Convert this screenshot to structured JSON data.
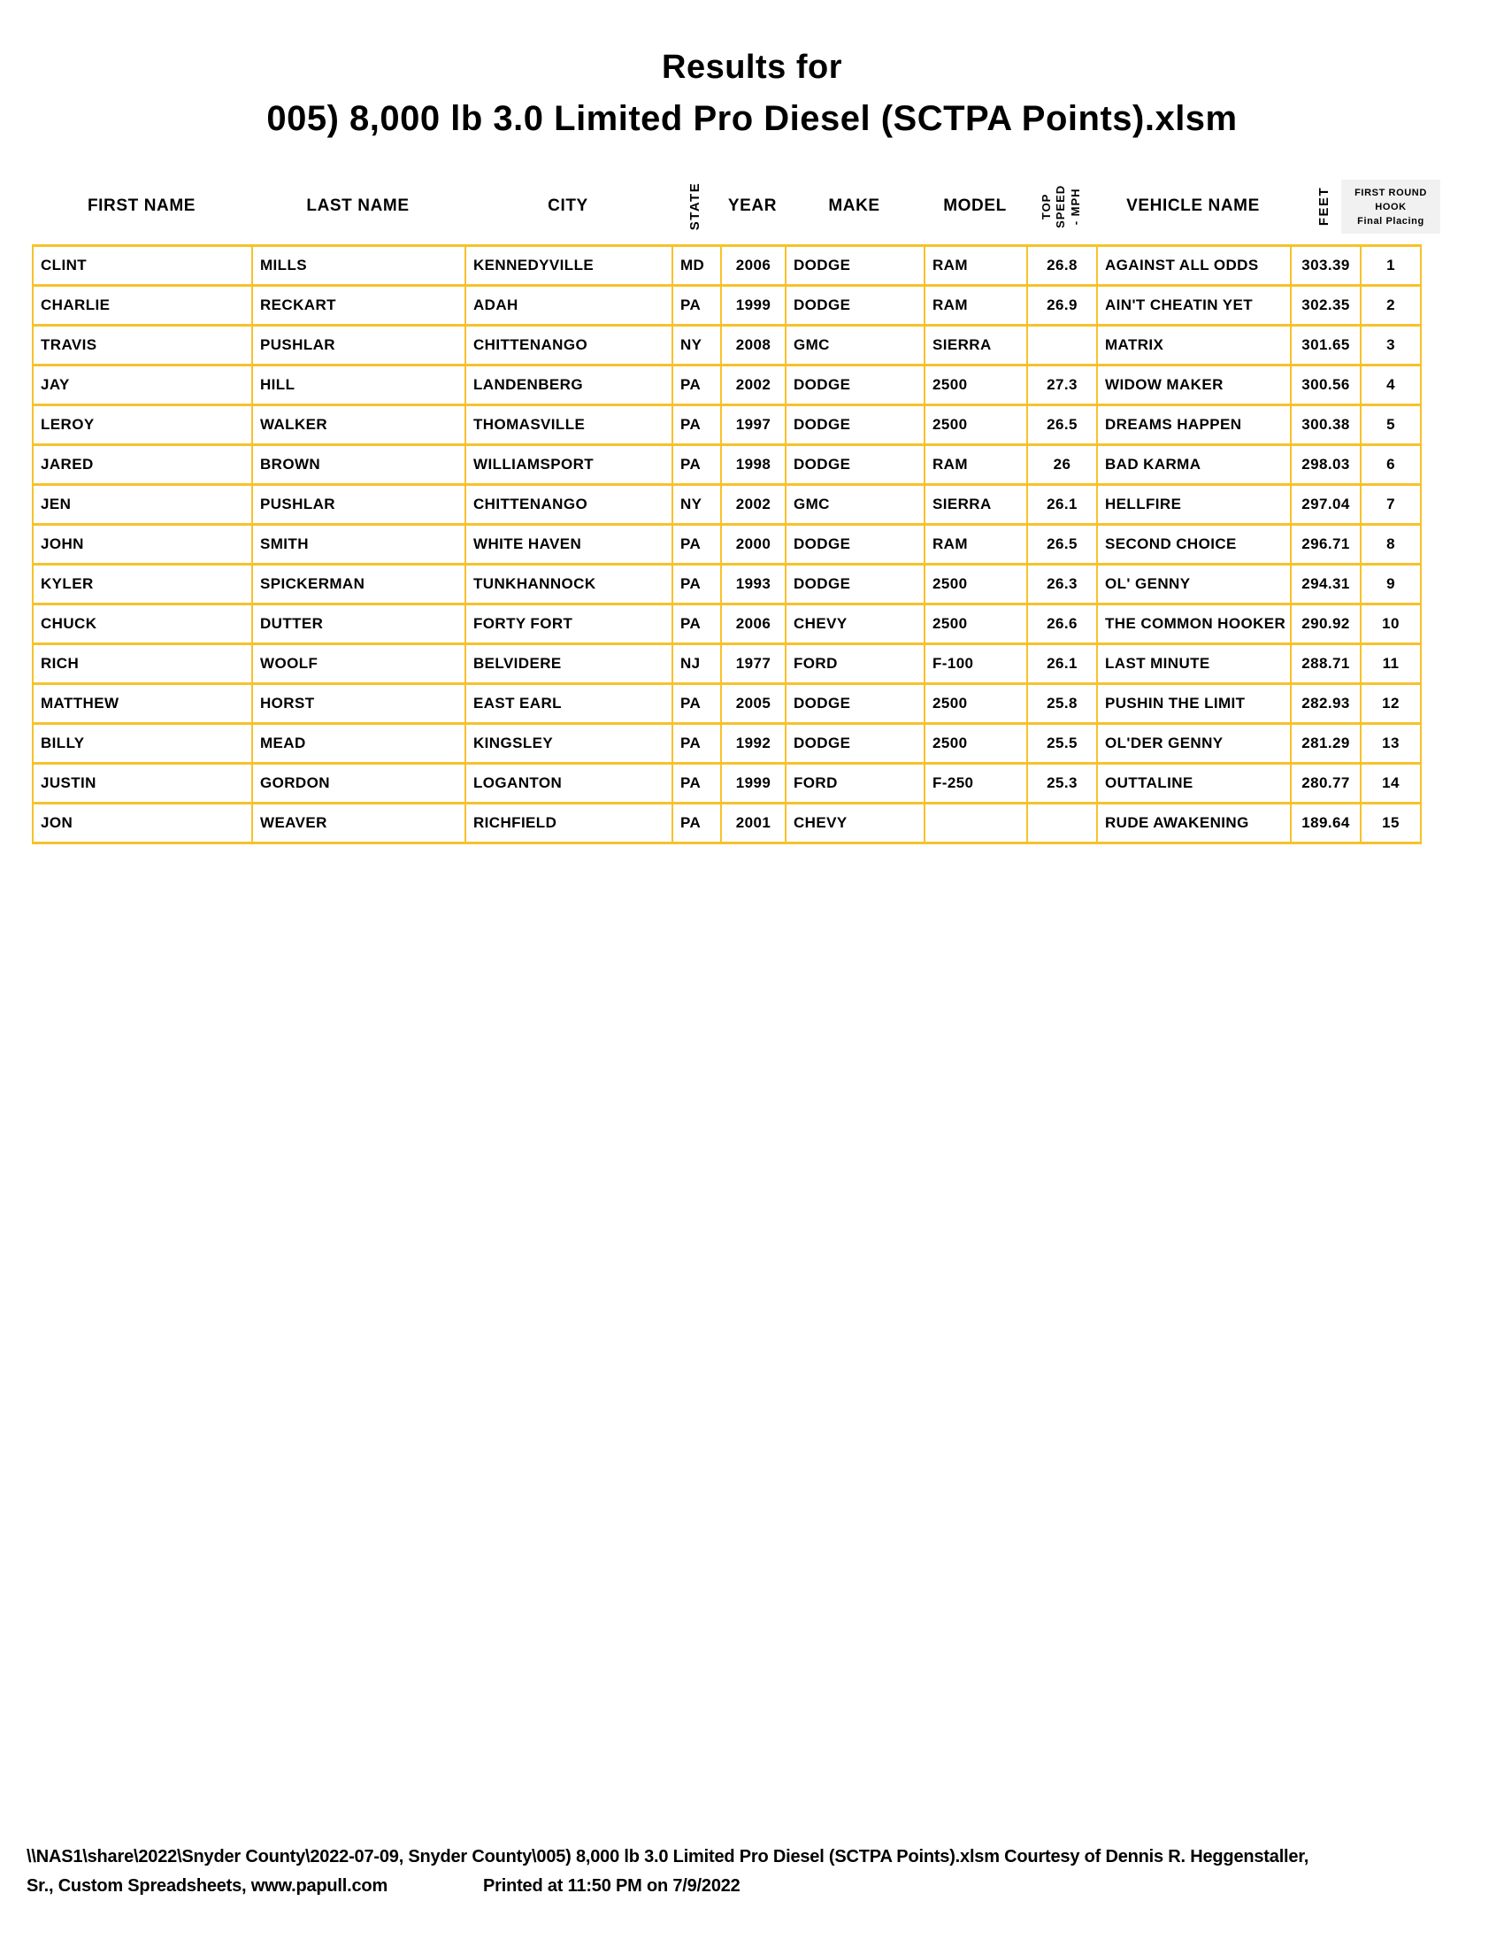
{
  "title": {
    "line1": "Results for",
    "line2": "005) 8,000 lb 3.0 Limited Pro Diesel (SCTPA Points).xlsm"
  },
  "colors": {
    "table_border": "#F6C22C",
    "placing_header_bg": "#F1F1F1"
  },
  "table": {
    "columns": [
      {
        "key": "first_name",
        "label": "FIRST NAME"
      },
      {
        "key": "last_name",
        "label": "LAST NAME"
      },
      {
        "key": "city",
        "label": "CITY"
      },
      {
        "key": "state",
        "label": "STATE"
      },
      {
        "key": "year",
        "label": "YEAR"
      },
      {
        "key": "make",
        "label": "MAKE"
      },
      {
        "key": "model",
        "label": "MODEL"
      },
      {
        "key": "top_speed",
        "label": "TOP\nSPEED\n- MPH"
      },
      {
        "key": "vehicle_name",
        "label": "VEHICLE NAME"
      },
      {
        "key": "feet",
        "label": "FEET"
      },
      {
        "key": "placing",
        "label_line1": "FIRST ROUND",
        "label_line2": "HOOK",
        "label_line3": "Final Placing"
      }
    ],
    "rows": [
      {
        "first_name": "CLINT",
        "last_name": "MILLS",
        "city": "KENNEDYVILLE",
        "state": "MD",
        "year": "2006",
        "make": "DODGE",
        "model": "RAM",
        "top_speed": "26.8",
        "vehicle_name": "AGAINST ALL ODDS",
        "feet": "303.39",
        "placing": "1"
      },
      {
        "first_name": "CHARLIE",
        "last_name": "RECKART",
        "city": "ADAH",
        "state": "PA",
        "year": "1999",
        "make": "DODGE",
        "model": "RAM",
        "top_speed": "26.9",
        "vehicle_name": "AIN'T CHEATIN YET",
        "feet": "302.35",
        "placing": "2"
      },
      {
        "first_name": "TRAVIS",
        "last_name": "PUSHLAR",
        "city": "CHITTENANGO",
        "state": "NY",
        "year": "2008",
        "make": "GMC",
        "model": "SIERRA",
        "top_speed": "",
        "vehicle_name": "MATRIX",
        "feet": "301.65",
        "placing": "3"
      },
      {
        "first_name": "JAY",
        "last_name": "HILL",
        "city": "LANDENBERG",
        "state": "PA",
        "year": "2002",
        "make": "DODGE",
        "model": "2500",
        "top_speed": "27.3",
        "vehicle_name": "WIDOW MAKER",
        "feet": "300.56",
        "placing": "4"
      },
      {
        "first_name": "LEROY",
        "last_name": "WALKER",
        "city": "THOMASVILLE",
        "state": "PA",
        "year": "1997",
        "make": "DODGE",
        "model": "2500",
        "top_speed": "26.5",
        "vehicle_name": "DREAMS HAPPEN",
        "feet": "300.38",
        "placing": "5"
      },
      {
        "first_name": "JARED",
        "last_name": "BROWN",
        "city": "WILLIAMSPORT",
        "state": "PA",
        "year": "1998",
        "make": "DODGE",
        "model": "RAM",
        "top_speed": "26",
        "vehicle_name": "BAD KARMA",
        "feet": "298.03",
        "placing": "6"
      },
      {
        "first_name": "JEN",
        "last_name": "PUSHLAR",
        "city": "CHITTENANGO",
        "state": "NY",
        "year": "2002",
        "make": "GMC",
        "model": "SIERRA",
        "top_speed": "26.1",
        "vehicle_name": "HELLFIRE",
        "feet": "297.04",
        "placing": "7"
      },
      {
        "first_name": "JOHN",
        "last_name": "SMITH",
        "city": "WHITE HAVEN",
        "state": "PA",
        "year": "2000",
        "make": "DODGE",
        "model": "RAM",
        "top_speed": "26.5",
        "vehicle_name": "SECOND CHOICE",
        "feet": "296.71",
        "placing": "8"
      },
      {
        "first_name": "KYLER",
        "last_name": "SPICKERMAN",
        "city": "TUNKHANNOCK",
        "state": "PA",
        "year": "1993",
        "make": "DODGE",
        "model": "2500",
        "top_speed": "26.3",
        "vehicle_name": "OL' GENNY",
        "feet": "294.31",
        "placing": "9"
      },
      {
        "first_name": "CHUCK",
        "last_name": "DUTTER",
        "city": "FORTY FORT",
        "state": "PA",
        "year": "2006",
        "make": "CHEVY",
        "model": "2500",
        "top_speed": "26.6",
        "vehicle_name": "THE COMMON HOOKER",
        "feet": "290.92",
        "placing": "10"
      },
      {
        "first_name": "RICH",
        "last_name": "WOOLF",
        "city": "BELVIDERE",
        "state": "NJ",
        "year": "1977",
        "make": "FORD",
        "model": "F-100",
        "top_speed": "26.1",
        "vehicle_name": "LAST MINUTE",
        "feet": "288.71",
        "placing": "11"
      },
      {
        "first_name": "MATTHEW",
        "last_name": "HORST",
        "city": "EAST EARL",
        "state": "PA",
        "year": "2005",
        "make": "DODGE",
        "model": "2500",
        "top_speed": "25.8",
        "vehicle_name": "PUSHIN THE LIMIT",
        "feet": "282.93",
        "placing": "12"
      },
      {
        "first_name": "BILLY",
        "last_name": "MEAD",
        "city": "KINGSLEY",
        "state": "PA",
        "year": "1992",
        "make": "DODGE",
        "model": "2500",
        "top_speed": "25.5",
        "vehicle_name": "OL'DER GENNY",
        "feet": "281.29",
        "placing": "13"
      },
      {
        "first_name": "JUSTIN",
        "last_name": "GORDON",
        "city": "LOGANTON",
        "state": "PA",
        "year": "1999",
        "make": "FORD",
        "model": "F-250",
        "top_speed": "25.3",
        "vehicle_name": "OUTTALINE",
        "feet": "280.77",
        "placing": "14"
      },
      {
        "first_name": "JON",
        "last_name": "WEAVER",
        "city": "RICHFIELD",
        "state": "PA",
        "year": "2001",
        "make": "CHEVY",
        "model": "",
        "top_speed": "",
        "vehicle_name": "RUDE AWAKENING",
        "feet": "189.64",
        "placing": "15"
      }
    ]
  },
  "footer": {
    "line1": "\\\\NAS1\\share\\2022\\Snyder County\\2022-07-09, Snyder County\\005) 8,000 lb 3.0 Limited Pro Diesel (SCTPA Points).xlsm  Courtesy of Dennis R. Heggenstaller,",
    "line2_left": "Sr., Custom Spreadsheets, www.papull.com",
    "line2_right": "Printed at 11:50 PM on 7/9/2022"
  }
}
